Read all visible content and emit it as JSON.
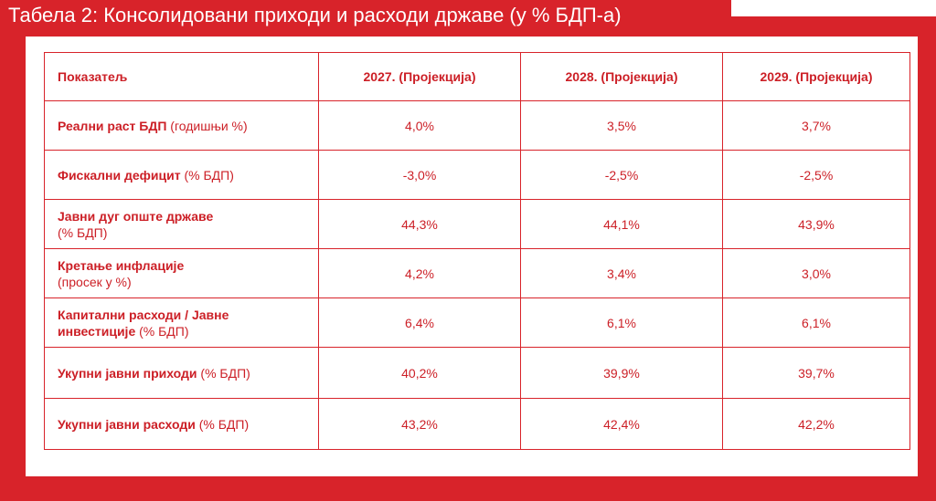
{
  "caption": "Табела 2: Консолидовани приходи и расходи државе (у % БДП-а)",
  "table": {
    "headers": [
      "Показатељ",
      "2027. (Пројекција)",
      "2028. (Пројекција)",
      "2029. (Пројекција)"
    ],
    "rows": [
      {
        "label_bold": "Реални раст БДП",
        "label_rest": " (годишњи %)",
        "values": [
          "4,0%",
          "3,5%",
          "3,7%"
        ]
      },
      {
        "label_bold": "Фискални дефицит",
        "label_rest": " (% БДП)",
        "values": [
          "-3,0%",
          "-2,5%",
          "-2,5%"
        ]
      },
      {
        "label_bold": "Јавни дуг опште државе",
        "label_rest": "(% БДП)",
        "values": [
          "44,3%",
          "44,1%",
          "43,9%"
        ]
      },
      {
        "label_bold": "Кретање инфлације",
        "label_rest": "(просек у %)",
        "values": [
          "4,2%",
          "3,4%",
          "3,0%"
        ]
      },
      {
        "label_bold": "Капитални расходи / Јавне инвестиције",
        "label_rest": " (% БДП)",
        "values": [
          "6,4%",
          "6,1%",
          "6,1%"
        ]
      },
      {
        "label_bold": "Укупни јавни приходи",
        "label_rest": " (% БДП)",
        "values": [
          "40,2%",
          "39,9%",
          "39,7%"
        ]
      },
      {
        "label_bold": "Укупни јавни расходи",
        "label_rest": " (% БДП)",
        "values": [
          "43,2%",
          "42,4%",
          "42,2%"
        ]
      }
    ]
  },
  "colors": {
    "brand_red": "#d8232a",
    "text_red": "#cc1f26",
    "background": "#ffffff"
  }
}
